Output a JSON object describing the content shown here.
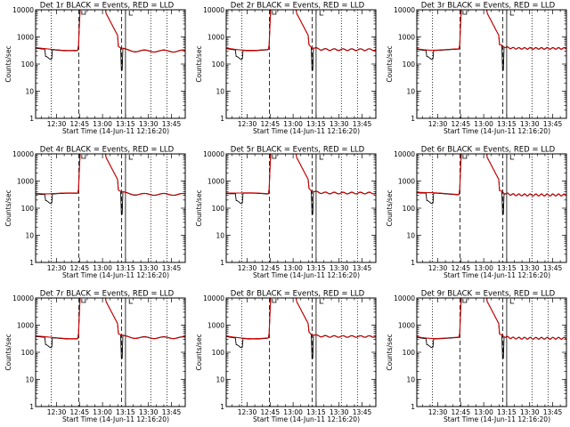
{
  "chart_data": [
    {
      "type": "line",
      "title": "Det 1r BLACK = Events, RED = LLD",
      "xlabel": "Start Time (14-Jun-11 12:16:20)",
      "ylabel": "Counts/sec",
      "yscale": "log",
      "ylim": [
        1,
        10000
      ],
      "xlim": [
        "12:16:20",
        "13:54:00"
      ],
      "xticks": [
        "12:30",
        "12:45",
        "13:00",
        "13:15",
        "13:30",
        "13:45"
      ],
      "yticks": [
        1,
        10,
        100,
        1000,
        10000
      ],
      "series": [
        {
          "name": "Events",
          "color": "#000000"
        },
        {
          "name": "LLD",
          "color": "#cc0000"
        }
      ],
      "markers": [
        {
          "time": "12:26:30",
          "style": "dotted"
        },
        {
          "time": "12:44:30",
          "style": "dashed"
        },
        {
          "time": "13:12:30",
          "style": "dashed"
        },
        {
          "time": "13:15:00",
          "style": "solid"
        },
        {
          "time": "13:31:30",
          "style": "dotted"
        },
        {
          "time": "13:42:00",
          "style": "dotted"
        }
      ],
      "grid": false
    },
    {
      "type": "line",
      "title": "Det 2r BLACK = Events, RED = LLD",
      "xlabel": "Start Time (14-Jun-11 12:16:20)",
      "ylabel": "Counts/sec",
      "yscale": "log",
      "ylim": [
        1,
        10000
      ],
      "xlim": [
        "12:16:20",
        "13:54:00"
      ],
      "xticks": [
        "12:30",
        "12:45",
        "13:00",
        "13:15",
        "13:30",
        "13:45"
      ],
      "yticks": [
        1,
        10,
        100,
        1000,
        10000
      ],
      "series": [
        {
          "name": "Events",
          "color": "#000000"
        },
        {
          "name": "LLD",
          "color": "#cc0000"
        }
      ],
      "markers": [
        {
          "time": "12:26:30",
          "style": "dotted"
        },
        {
          "time": "12:44:30",
          "style": "dashed"
        },
        {
          "time": "13:12:30",
          "style": "dashed"
        },
        {
          "time": "13:15:00",
          "style": "solid"
        },
        {
          "time": "13:31:30",
          "style": "dotted"
        },
        {
          "time": "13:42:00",
          "style": "dotted"
        }
      ],
      "grid": false
    },
    {
      "type": "line",
      "title": "Det 3r BLACK = Events, RED = LLD",
      "xlabel": "Start Time (14-Jun-11 12:16:20)",
      "ylabel": "Counts/sec",
      "yscale": "log",
      "ylim": [
        1,
        10000
      ],
      "xlim": [
        "12:16:20",
        "13:54:00"
      ],
      "xticks": [
        "12:30",
        "12:45",
        "13:00",
        "13:15",
        "13:30",
        "13:45"
      ],
      "yticks": [
        1,
        10,
        100,
        1000,
        10000
      ],
      "series": [
        {
          "name": "Events",
          "color": "#000000"
        },
        {
          "name": "LLD",
          "color": "#cc0000"
        }
      ],
      "markers": [
        {
          "time": "12:26:30",
          "style": "dotted"
        },
        {
          "time": "12:44:30",
          "style": "dashed"
        },
        {
          "time": "13:12:30",
          "style": "dashed"
        },
        {
          "time": "13:15:00",
          "style": "solid"
        },
        {
          "time": "13:31:30",
          "style": "dotted"
        },
        {
          "time": "13:42:00",
          "style": "dotted"
        }
      ],
      "grid": false
    },
    {
      "type": "line",
      "title": "Det 4r BLACK = Events, RED = LLD",
      "xlabel": "Start Time (14-Jun-11 12:16:20)",
      "ylabel": "Counts/sec",
      "yscale": "log",
      "ylim": [
        1,
        10000
      ],
      "xlim": [
        "12:16:20",
        "13:54:00"
      ],
      "xticks": [
        "12:30",
        "12:45",
        "13:00",
        "13:15",
        "13:30",
        "13:45"
      ],
      "yticks": [
        1,
        10,
        100,
        1000,
        10000
      ],
      "series": [
        {
          "name": "Events",
          "color": "#000000"
        },
        {
          "name": "LLD",
          "color": "#cc0000"
        }
      ],
      "markers": [
        {
          "time": "12:26:30",
          "style": "dotted"
        },
        {
          "time": "12:44:30",
          "style": "dashed"
        },
        {
          "time": "13:12:30",
          "style": "dashed"
        },
        {
          "time": "13:15:00",
          "style": "solid"
        },
        {
          "time": "13:31:30",
          "style": "dotted"
        },
        {
          "time": "13:42:00",
          "style": "dotted"
        }
      ],
      "grid": false
    },
    {
      "type": "line",
      "title": "Det 5r BLACK = Events, RED = LLD",
      "xlabel": "Start Time (14-Jun-11 12:16:20)",
      "ylabel": "Counts/sec",
      "yscale": "log",
      "ylim": [
        1,
        10000
      ],
      "xlim": [
        "12:16:20",
        "13:54:00"
      ],
      "xticks": [
        "12:30",
        "12:45",
        "13:00",
        "13:15",
        "13:30",
        "13:45"
      ],
      "yticks": [
        1,
        10,
        100,
        1000,
        10000
      ],
      "series": [
        {
          "name": "Events",
          "color": "#000000"
        },
        {
          "name": "LLD",
          "color": "#cc0000"
        }
      ],
      "markers": [
        {
          "time": "12:26:30",
          "style": "dotted"
        },
        {
          "time": "12:44:30",
          "style": "dashed"
        },
        {
          "time": "13:12:30",
          "style": "dashed"
        },
        {
          "time": "13:15:00",
          "style": "solid"
        },
        {
          "time": "13:31:30",
          "style": "dotted"
        },
        {
          "time": "13:42:00",
          "style": "dotted"
        }
      ],
      "grid": false
    },
    {
      "type": "line",
      "title": "Det 6r BLACK = Events, RED = LLD",
      "xlabel": "Start Time (14-Jun-11 12:16:20)",
      "ylabel": "Counts/sec",
      "yscale": "log",
      "ylim": [
        1,
        10000
      ],
      "xlim": [
        "12:16:20",
        "13:54:00"
      ],
      "xticks": [
        "12:30",
        "12:45",
        "13:00",
        "13:15",
        "13:30",
        "13:45"
      ],
      "yticks": [
        1,
        10,
        100,
        1000,
        10000
      ],
      "series": [
        {
          "name": "Events",
          "color": "#000000"
        },
        {
          "name": "LLD",
          "color": "#cc0000"
        }
      ],
      "markers": [
        {
          "time": "12:26:30",
          "style": "dotted"
        },
        {
          "time": "12:44:30",
          "style": "dashed"
        },
        {
          "time": "13:12:30",
          "style": "dashed"
        },
        {
          "time": "13:15:00",
          "style": "solid"
        },
        {
          "time": "13:31:30",
          "style": "dotted"
        },
        {
          "time": "13:42:00",
          "style": "dotted"
        }
      ],
      "grid": false
    },
    {
      "type": "line",
      "title": "Det 7r BLACK = Events, RED = LLD",
      "xlabel": "Start Time (14-Jun-11 12:16:20)",
      "ylabel": "Counts/sec",
      "yscale": "log",
      "ylim": [
        1,
        10000
      ],
      "xlim": [
        "12:16:20",
        "13:54:00"
      ],
      "xticks": [
        "12:30",
        "12:45",
        "13:00",
        "13:15",
        "13:30",
        "13:45"
      ],
      "yticks": [
        1,
        10,
        100,
        1000,
        10000
      ],
      "series": [
        {
          "name": "Events",
          "color": "#000000"
        },
        {
          "name": "LLD",
          "color": "#cc0000"
        }
      ],
      "markers": [
        {
          "time": "12:26:30",
          "style": "dotted"
        },
        {
          "time": "12:44:30",
          "style": "dashed"
        },
        {
          "time": "13:12:30",
          "style": "dashed"
        },
        {
          "time": "13:15:00",
          "style": "solid"
        },
        {
          "time": "13:31:30",
          "style": "dotted"
        },
        {
          "time": "13:42:00",
          "style": "dotted"
        }
      ],
      "grid": false
    },
    {
      "type": "line",
      "title": "Det 8r BLACK = Events, RED = LLD",
      "xlabel": "Start Time (14-Jun-11 12:16:20)",
      "ylabel": "Counts/sec",
      "yscale": "log",
      "ylim": [
        1,
        10000
      ],
      "xlim": [
        "12:16:20",
        "13:54:00"
      ],
      "xticks": [
        "12:30",
        "12:45",
        "13:00",
        "13:15",
        "13:30",
        "13:45"
      ],
      "yticks": [
        1,
        10,
        100,
        1000,
        10000
      ],
      "series": [
        {
          "name": "Events",
          "color": "#000000"
        },
        {
          "name": "LLD",
          "color": "#cc0000"
        }
      ],
      "markers": [
        {
          "time": "12:26:30",
          "style": "dotted"
        },
        {
          "time": "12:44:30",
          "style": "dashed"
        },
        {
          "time": "13:12:30",
          "style": "dashed"
        },
        {
          "time": "13:15:00",
          "style": "solid"
        },
        {
          "time": "13:31:30",
          "style": "dotted"
        },
        {
          "time": "13:42:00",
          "style": "dotted"
        }
      ],
      "grid": false
    },
    {
      "type": "line",
      "title": "Det 9r BLACK = Events, RED = LLD",
      "xlabel": "Start Time (14-Jun-11 12:16:20)",
      "ylabel": "Counts/sec",
      "yscale": "log",
      "ylim": [
        1,
        10000
      ],
      "xlim": [
        "12:16:20",
        "13:54:00"
      ],
      "xticks": [
        "12:30",
        "12:45",
        "13:00",
        "13:15",
        "13:30",
        "13:45"
      ],
      "yticks": [
        1,
        10,
        100,
        1000,
        10000
      ],
      "series": [
        {
          "name": "Events",
          "color": "#000000"
        },
        {
          "name": "LLD",
          "color": "#cc0000"
        }
      ],
      "markers": [
        {
          "time": "12:26:30",
          "style": "dotted"
        },
        {
          "time": "12:44:30",
          "style": "dashed"
        },
        {
          "time": "13:12:30",
          "style": "dashed"
        },
        {
          "time": "13:15:00",
          "style": "solid"
        },
        {
          "time": "13:31:30",
          "style": "dotted"
        },
        {
          "time": "13:42:00",
          "style": "dotted"
        }
      ],
      "grid": false
    }
  ]
}
